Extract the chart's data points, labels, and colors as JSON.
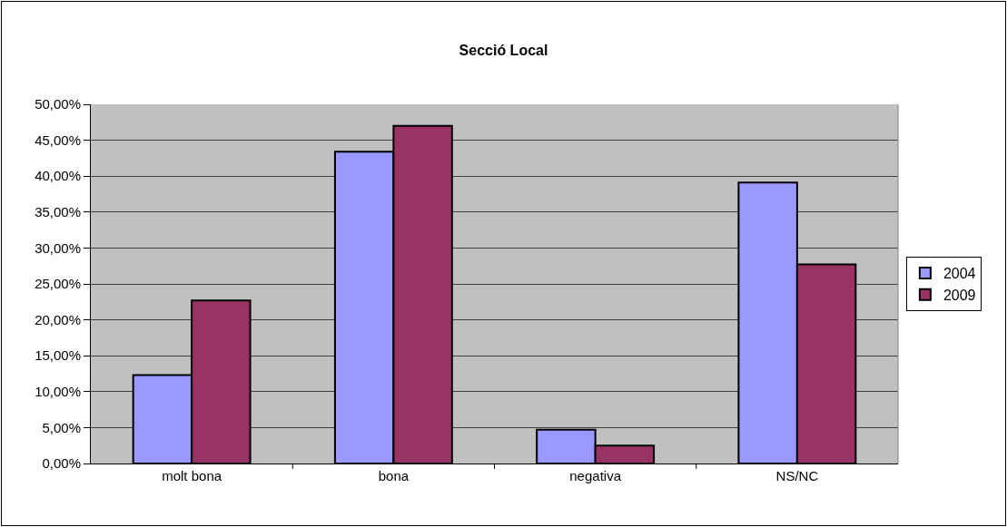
{
  "chart_data": {
    "type": "bar",
    "title": "Secció Local",
    "categories": [
      "molt bona",
      "bona",
      "negativa",
      "NS/NC"
    ],
    "series": [
      {
        "name": "2004",
        "color": "#9999ff",
        "values": [
          12.3,
          43.4,
          4.7,
          39.1
        ]
      },
      {
        "name": "2009",
        "color": "#993366",
        "values": [
          22.7,
          47.0,
          2.5,
          27.7
        ]
      }
    ],
    "ylim": [
      0,
      50
    ],
    "yticks": [
      {
        "value": 0,
        "label": "0,00%"
      },
      {
        "value": 5,
        "label": "5,00%"
      },
      {
        "value": 10,
        "label": "10,00%"
      },
      {
        "value": 15,
        "label": "15,00%"
      },
      {
        "value": 20,
        "label": "20,00%"
      },
      {
        "value": 25,
        "label": "25,00%"
      },
      {
        "value": 30,
        "label": "30,00%"
      },
      {
        "value": 35,
        "label": "35,00%"
      },
      {
        "value": 40,
        "label": "40,00%"
      },
      {
        "value": 45,
        "label": "45,00%"
      },
      {
        "value": 50,
        "label": "50,00%"
      }
    ],
    "grid": "y",
    "legend": "right"
  }
}
